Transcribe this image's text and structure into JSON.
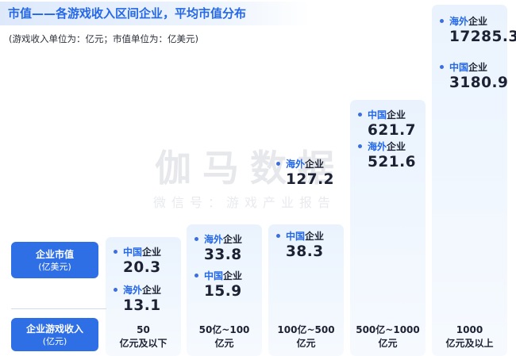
{
  "header": {
    "title": "市值——各游戏收入区间企业，平均市值分布",
    "subtitle": "(游戏收入单位为：亿元；市值单位为：亿美元)"
  },
  "watermark": {
    "main": "伽马数据",
    "sub": "微信号：游戏产业报告"
  },
  "row_labels": {
    "market_cap": {
      "line1": "企业市值",
      "line2": "(亿美元)"
    },
    "revenue": {
      "line1": "企业游戏收入",
      "line2": "(亿元)"
    }
  },
  "colors": {
    "accent": "#2468e8",
    "pill": "#2f6fe6",
    "column": "#eaf3fd"
  },
  "chart_data": {
    "type": "table",
    "categories": [
      "50 亿元及以下",
      "50亿~100 亿元",
      "100亿~500 亿元",
      "500亿~1000 亿元",
      "1000 亿元及以上"
    ],
    "columns": [
      {
        "rev_line1": "50",
        "rev_line2": "亿元及以下",
        "entries": [
          {
            "hl": "中国",
            "rest": "企业",
            "value": "20.3"
          },
          {
            "hl": "海外",
            "rest": "企业",
            "value": "13.1"
          }
        ]
      },
      {
        "rev_line1": "50亿~100",
        "rev_line2": "亿元",
        "entries": [
          {
            "hl": "海外",
            "rest": "企业",
            "value": "33.8"
          },
          {
            "hl": "中国",
            "rest": "企业",
            "value": "15.9"
          }
        ]
      },
      {
        "rev_line1": "100亿~500",
        "rev_line2": "亿元",
        "entries": [
          {
            "hl": "海外",
            "rest": "企业",
            "value": "127.2"
          },
          {
            "hl": "中国",
            "rest": "企业",
            "value": "38.3"
          }
        ]
      },
      {
        "rev_line1": "500亿~1000",
        "rev_line2": "亿元",
        "entries": [
          {
            "hl": "中国",
            "rest": "企业",
            "value": "621.7"
          },
          {
            "hl": "海外",
            "rest": "企业",
            "value": "521.6"
          }
        ]
      },
      {
        "rev_line1": "1000",
        "rev_line2": "亿元及以上",
        "entries": [
          {
            "hl": "海外",
            "rest": "企业",
            "value": "17285.3"
          },
          {
            "hl": "中国",
            "rest": "企业",
            "value": "3180.9"
          }
        ]
      }
    ],
    "series": [
      {
        "name": "中国企业",
        "values": [
          20.3,
          15.9,
          38.3,
          621.7,
          3180.9
        ]
      },
      {
        "name": "海外企业",
        "values": [
          13.1,
          33.8,
          127.2,
          521.6,
          17285.3
        ]
      }
    ]
  }
}
